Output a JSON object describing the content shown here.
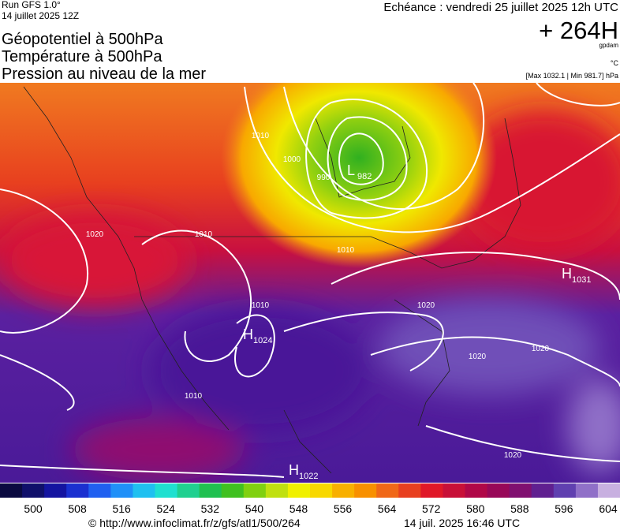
{
  "header": {
    "run": "Run GFS 1.0°",
    "run_date": "14 juillet 2025 12Z",
    "titles": [
      "Géopotentiel à 500hPa",
      "Température à 500hPa",
      "Pression au niveau de la mer"
    ],
    "valid": "Echéance : vendredi 25 juillet 2025 12h UTC",
    "lead": "+ 264H",
    "unit_geo": "gpdam",
    "unit_temp": "°C",
    "extremes": "[Max 1032.1 | Min 981.7] hPa"
  },
  "centers": [
    {
      "letter": "L",
      "value": 982
    },
    {
      "letter": "H",
      "value": 1031
    },
    {
      "letter": "H",
      "value": 1024
    },
    {
      "letter": "H",
      "value": 1022
    }
  ],
  "isobar_labels": [
    1010,
    1000,
    990,
    1010,
    1020,
    1010,
    1010,
    1020,
    1020,
    1020,
    1010,
    1020
  ],
  "colorbar": {
    "ticks": [
      500,
      508,
      516,
      524,
      532,
      540,
      548,
      556,
      564,
      572,
      580,
      588,
      596,
      604
    ],
    "colors": [
      "#0a0a40",
      "#10106a",
      "#1414a0",
      "#1a30d0",
      "#2060f0",
      "#2090f8",
      "#20c0f0",
      "#20e0d0",
      "#20d090",
      "#20c050",
      "#40c020",
      "#80d010",
      "#c0e010",
      "#f0f000",
      "#f8d800",
      "#f8b000",
      "#f89000",
      "#f06818",
      "#e84020",
      "#e01828",
      "#c81038",
      "#b00848",
      "#980858",
      "#801070",
      "#602090",
      "#6040b0",
      "#9070c8",
      "#c8b0e0"
    ]
  },
  "footer": {
    "url": "© http://www.infoclimat.fr/z/gfs/atl1/500/264",
    "stamp": "14 juil. 2025 16:46 UTC"
  }
}
